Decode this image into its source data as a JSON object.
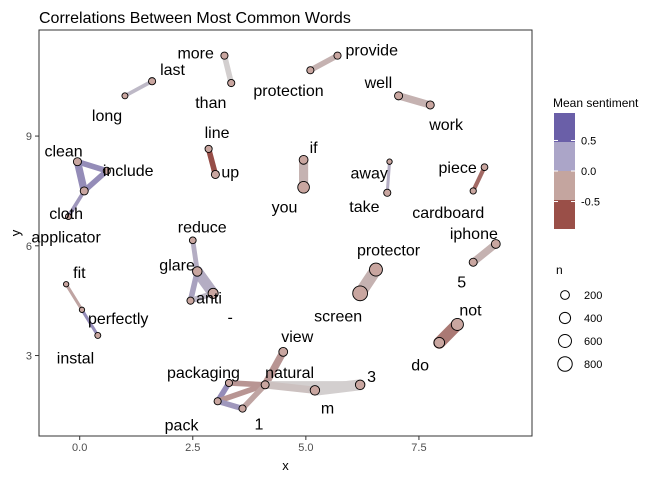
{
  "chart_data": {
    "type": "network",
    "title": "Correlations Between Most Common Words",
    "xlabel": "x",
    "ylabel": "y",
    "xlim": [
      -0.9,
      10.0
    ],
    "ylim": [
      0.8,
      11.9
    ],
    "x_ticks": [
      0.0,
      2.5,
      5.0,
      7.5
    ],
    "y_ticks": [
      3,
      6,
      9
    ],
    "x_tick_labels": [
      "0.0",
      "2.5",
      "5.0",
      "7.5"
    ],
    "y_tick_labels": [
      "3",
      "6",
      "9"
    ],
    "nodes": [
      {
        "word": "more",
        "x": 3.2,
        "y": 11.2,
        "n": 100
      },
      {
        "word": "than",
        "x": 3.35,
        "y": 10.45,
        "n": 100
      },
      {
        "word": "provide",
        "x": 5.7,
        "y": 11.2,
        "n": 100
      },
      {
        "word": "protection",
        "x": 5.1,
        "y": 10.8,
        "n": 100
      },
      {
        "word": "last",
        "x": 1.6,
        "y": 10.5,
        "n": 100
      },
      {
        "word": "long",
        "x": 1.0,
        "y": 10.1,
        "n": 50
      },
      {
        "word": "well",
        "x": 7.05,
        "y": 10.1,
        "n": 150
      },
      {
        "word": "work",
        "x": 7.75,
        "y": 9.85,
        "n": 150
      },
      {
        "word": "line",
        "x": 2.85,
        "y": 8.65,
        "n": 100
      },
      {
        "word": "up",
        "x": 3.0,
        "y": 7.95,
        "n": 150
      },
      {
        "word": "if",
        "x": 4.95,
        "y": 8.35,
        "n": 200
      },
      {
        "word": "you",
        "x": 4.95,
        "y": 7.6,
        "n": 450
      },
      {
        "word": "away",
        "x": 6.85,
        "y": 8.3,
        "n": 30
      },
      {
        "word": "take",
        "x": 6.8,
        "y": 7.45,
        "n": 100
      },
      {
        "word": "piece",
        "x": 8.95,
        "y": 8.15,
        "n": 80
      },
      {
        "word": "cardboard",
        "x": 8.7,
        "y": 7.5,
        "n": 60
      },
      {
        "word": "clean",
        "x": -0.05,
        "y": 8.3,
        "n": 150
      },
      {
        "word": "include",
        "x": 0.6,
        "y": 8.05,
        "n": 100
      },
      {
        "word": "cloth",
        "x": 0.1,
        "y": 7.5,
        "n": 150
      },
      {
        "word": "applicator",
        "x": -0.25,
        "y": 6.8,
        "n": 50
      },
      {
        "word": "iphone",
        "x": 9.2,
        "y": 6.05,
        "n": 200
      },
      {
        "word": "5",
        "x": 8.7,
        "y": 5.55,
        "n": 150
      },
      {
        "word": "reduce",
        "x": 2.5,
        "y": 6.15,
        "n": 80
      },
      {
        "word": "glare",
        "x": 2.6,
        "y": 5.3,
        "n": 250
      },
      {
        "word": "anti",
        "x": 2.95,
        "y": 4.7,
        "n": 300
      },
      {
        "word": "-",
        "x": 2.45,
        "y": 4.5,
        "n": 100
      },
      {
        "word": "protector",
        "x": 6.55,
        "y": 5.35,
        "n": 600
      },
      {
        "word": "screen",
        "x": 6.2,
        "y": 4.7,
        "n": 850
      },
      {
        "word": "fit",
        "x": -0.3,
        "y": 4.95,
        "n": 30
      },
      {
        "word": "perfectly",
        "x": 0.05,
        "y": 4.25,
        "n": 30
      },
      {
        "word": "instal",
        "x": 0.4,
        "y": 3.55,
        "n": 50
      },
      {
        "word": "not",
        "x": 8.35,
        "y": 3.85,
        "n": 500
      },
      {
        "word": "do",
        "x": 7.95,
        "y": 3.35,
        "n": 350
      },
      {
        "word": "view",
        "x": 4.5,
        "y": 3.1,
        "n": 200
      },
      {
        "word": "packaging",
        "x": 3.3,
        "y": 2.25,
        "n": 100
      },
      {
        "word": "natural",
        "x": 4.1,
        "y": 2.2,
        "n": 150
      },
      {
        "word": "3",
        "x": 6.2,
        "y": 2.2,
        "n": 250
      },
      {
        "word": "m",
        "x": 5.2,
        "y": 2.05,
        "n": 250
      },
      {
        "word": "pack",
        "x": 3.05,
        "y": 1.75,
        "n": 100
      },
      {
        "word": "1",
        "x": 3.6,
        "y": 1.55,
        "n": 100
      }
    ],
    "edges": [
      {
        "from": "more",
        "to": "than",
        "sentiment": 0.0
      },
      {
        "from": "provide",
        "to": "protection",
        "sentiment": -0.2
      },
      {
        "from": "last",
        "to": "long",
        "sentiment": 0.2
      },
      {
        "from": "well",
        "to": "work",
        "sentiment": -0.2
      },
      {
        "from": "line",
        "to": "up",
        "sentiment": -0.9
      },
      {
        "from": "if",
        "to": "you",
        "sentiment": -0.2
      },
      {
        "from": "away",
        "to": "take",
        "sentiment": 0.3
      },
      {
        "from": "piece",
        "to": "cardboard",
        "sentiment": -0.7
      },
      {
        "from": "clean",
        "to": "include",
        "sentiment": 0.6
      },
      {
        "from": "clean",
        "to": "cloth",
        "sentiment": 0.6
      },
      {
        "from": "cloth",
        "to": "include",
        "sentiment": 0.6
      },
      {
        "from": "cloth",
        "to": "applicator",
        "sentiment": 0.5
      },
      {
        "from": "iphone",
        "to": "5",
        "sentiment": -0.2
      },
      {
        "from": "reduce",
        "to": "glare",
        "sentiment": 0.3
      },
      {
        "from": "glare",
        "to": "anti",
        "sentiment": 0.3
      },
      {
        "from": "glare",
        "to": "-",
        "sentiment": 0.4
      },
      {
        "from": "anti",
        "to": "-",
        "sentiment": 0.2
      },
      {
        "from": "protector",
        "to": "screen",
        "sentiment": -0.2
      },
      {
        "from": "fit",
        "to": "perfectly",
        "sentiment": -0.3
      },
      {
        "from": "perfectly",
        "to": "instal",
        "sentiment": 0.6
      },
      {
        "from": "not",
        "to": "do",
        "sentiment": -0.6
      },
      {
        "from": "view",
        "to": "natural",
        "sentiment": -0.4
      },
      {
        "from": "natural",
        "to": "3",
        "sentiment": 0.0
      },
      {
        "from": "natural",
        "to": "m",
        "sentiment": -0.1
      },
      {
        "from": "m",
        "to": "3",
        "sentiment": 0.0
      },
      {
        "from": "packaging",
        "to": "pack",
        "sentiment": 0.6
      },
      {
        "from": "packaging",
        "to": "natural",
        "sentiment": -0.4
      },
      {
        "from": "pack",
        "to": "natural",
        "sentiment": -0.4
      },
      {
        "from": "pack",
        "to": "1",
        "sentiment": 0.5
      },
      {
        "from": "1",
        "to": "natural",
        "sentiment": -0.3
      }
    ],
    "color_legend": {
      "title": "Mean sentiment",
      "ticks": [
        0.5,
        0.0,
        -0.5
      ],
      "tick_labels": [
        "0.5",
        "0.0",
        "-0.5"
      ],
      "colors": [
        "#6a5fa8",
        "#aba5c8",
        "#c4a59f",
        "#9a4f48"
      ]
    },
    "size_legend": {
      "title": "n",
      "values": [
        200,
        400,
        600,
        800
      ],
      "labels": [
        "200",
        "400",
        "600",
        "800"
      ]
    }
  }
}
